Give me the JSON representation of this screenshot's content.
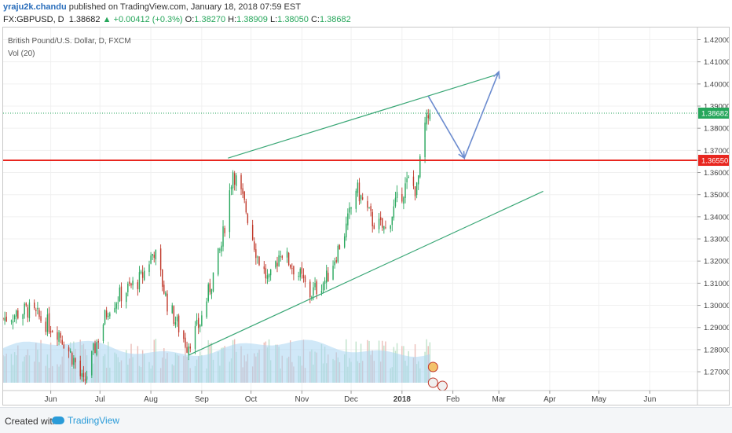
{
  "header": {
    "username": "yraju2k.chandu",
    "published": "published on TradingView.com, January 18, 2018 07:59 EST",
    "symbol": "FX:GBPUSD, D",
    "last": "1.38682",
    "change": "+0.00412 (+0.3%)",
    "open": "1.38270",
    "high": "1.38909",
    "low": "1.38050",
    "close": "1.38682"
  },
  "legend": {
    "title": "British Pound/U.S. Dollar, D, FXCM",
    "volume": "Vol (20)"
  },
  "footer": {
    "created_with": "Created with",
    "brand": "TradingView"
  },
  "colors": {
    "up": "#26a65b",
    "down": "#c0392b",
    "resistance": "#e8261f",
    "channel": "#3aa776",
    "projection": "#6c8ccf",
    "volume_ma": "#a9d6f2"
  },
  "chart_data": {
    "type": "candlestick",
    "title": "British Pound/U.S. Dollar, D, FXCM",
    "y_ticks": [
      "1.27000",
      "1.28000",
      "1.29000",
      "1.30000",
      "1.31000",
      "1.32000",
      "1.33000",
      "1.34000",
      "1.35000",
      "1.36000",
      "1.37000",
      "1.38000",
      "1.39000",
      "1.40000",
      "1.41000",
      "1.42000"
    ],
    "ylim": [
      1.2615,
      1.4255
    ],
    "x_ticks": [
      "Jun",
      "Jul",
      "Aug",
      "Sep",
      "Oct",
      "Nov",
      "Dec",
      "2018",
      "Feb",
      "Mar",
      "Apr",
      "May",
      "Jun"
    ],
    "x_tick_dates": [
      "2017-06-01",
      "2017-07-01",
      "2017-08-01",
      "2017-09-01",
      "2017-10-01",
      "2017-11-01",
      "2017-12-01",
      "2018-01-01",
      "2018-02-01",
      "2018-03-01",
      "2018-04-01",
      "2018-05-01",
      "2018-06-01"
    ],
    "xlim": [
      "2017-05-03",
      "2018-06-30"
    ],
    "last_price": "1.38682",
    "resistance_level": "1.36550",
    "resistance_value": 1.3655,
    "anchors": [
      {
        "date": "2017-05-03",
        "close": 1.294
      },
      {
        "date": "2017-05-18",
        "close": 1.298
      },
      {
        "date": "2017-06-06",
        "close": 1.288
      },
      {
        "date": "2017-06-16",
        "close": 1.274
      },
      {
        "date": "2017-06-21",
        "close": 1.264
      },
      {
        "date": "2017-06-28",
        "close": 1.281
      },
      {
        "date": "2017-07-06",
        "close": 1.299
      },
      {
        "date": "2017-07-14",
        "close": 1.305
      },
      {
        "date": "2017-07-26",
        "close": 1.312
      },
      {
        "date": "2017-08-03",
        "close": 1.325
      },
      {
        "date": "2017-08-11",
        "close": 1.301
      },
      {
        "date": "2017-08-23",
        "close": 1.282
      },
      {
        "date": "2017-08-31",
        "close": 1.292
      },
      {
        "date": "2017-09-13",
        "close": 1.327
      },
      {
        "date": "2017-09-20",
        "close": 1.361
      },
      {
        "date": "2017-09-28",
        "close": 1.343
      },
      {
        "date": "2017-10-05",
        "close": 1.322
      },
      {
        "date": "2017-10-12",
        "close": 1.31
      },
      {
        "date": "2017-10-19",
        "close": 1.325
      },
      {
        "date": "2017-10-31",
        "close": 1.313
      },
      {
        "date": "2017-11-06",
        "close": 1.305
      },
      {
        "date": "2017-11-16",
        "close": 1.312
      },
      {
        "date": "2017-11-28",
        "close": 1.335
      },
      {
        "date": "2017-12-04",
        "close": 1.353
      },
      {
        "date": "2017-12-14",
        "close": 1.338
      },
      {
        "date": "2017-12-22",
        "close": 1.334
      },
      {
        "date": "2017-12-29",
        "close": 1.347
      },
      {
        "date": "2018-01-05",
        "close": 1.356
      },
      {
        "date": "2018-01-10",
        "close": 1.352
      },
      {
        "date": "2018-01-15",
        "close": 1.381
      },
      {
        "date": "2018-01-18",
        "close": 1.3868
      }
    ],
    "channel_upper": [
      {
        "date": "2017-09-17",
        "value": 1.3665
      },
      {
        "date": "2018-03-01",
        "value": 1.4045
      }
    ],
    "channel_lower": [
      {
        "date": "2017-08-24",
        "value": 1.2775
      },
      {
        "date": "2018-03-28",
        "value": 1.3515
      }
    ],
    "projection": [
      {
        "date": "2018-01-17",
        "value": 1.3945
      },
      {
        "date": "2018-02-08",
        "value": 1.3665
      },
      {
        "date": "2018-03-01",
        "value": 1.4055
      }
    ]
  }
}
